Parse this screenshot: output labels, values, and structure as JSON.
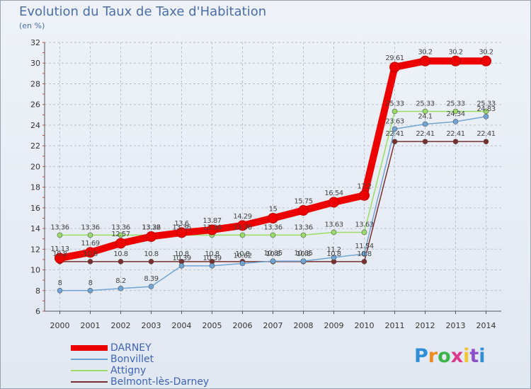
{
  "header": {
    "title": "Evolution du Taux de Taxe d'Habitation",
    "unit": "(en %)"
  },
  "logo": {
    "text": "Proxiti"
  },
  "chart_data": {
    "type": "line",
    "title": "Evolution du Taux de Taxe d'Habitation",
    "ylabel": "(en %)",
    "xlabel": "",
    "x": [
      2000,
      2001,
      2002,
      2003,
      2004,
      2005,
      2006,
      2007,
      2008,
      2009,
      2010,
      2011,
      2012,
      2013,
      2014
    ],
    "ylim": [
      6,
      32
    ],
    "yticks": [
      6,
      8,
      10,
      12,
      14,
      16,
      18,
      20,
      22,
      24,
      26,
      28,
      30,
      32
    ],
    "grid": true,
    "legend": "bottom-left",
    "series": [
      {
        "name": "DARNEY",
        "color": "#ee0000",
        "values": [
          11.13,
          11.69,
          12.57,
          13.22,
          13.6,
          13.87,
          14.29,
          15,
          15.75,
          16.54,
          17.2,
          29.61,
          30.2,
          30.2,
          30.2
        ],
        "labels": [
          "11.13",
          "11.69",
          "12.57",
          "13.22",
          "13.6",
          "13.87",
          "14.29",
          "15",
          "15.75",
          "16.54",
          "17.2",
          "29.61",
          "30.2",
          "30.2",
          "30.2"
        ]
      },
      {
        "name": "Bonvillet",
        "color": "#6fa5d6",
        "values": [
          8,
          8,
          8.2,
          8.39,
          10.39,
          10.39,
          10.62,
          10.85,
          10.85,
          11.2,
          11.54,
          23.63,
          24.1,
          24.34,
          24.83
        ],
        "labels": [
          "8",
          "8",
          "8.2",
          "8.39",
          "10.39",
          "10.39",
          "10.62",
          "10.85",
          "10.85",
          "11.2",
          "11.54",
          "23.63",
          "24.1",
          "24.34",
          "24.83"
        ]
      },
      {
        "name": "Attigny",
        "color": "#99dd66",
        "values": [
          13.36,
          13.36,
          13.36,
          13.36,
          13.36,
          13.36,
          13.36,
          13.36,
          13.36,
          13.63,
          13.63,
          25.33,
          25.33,
          25.33,
          25.33
        ],
        "labels": [
          "13.36",
          "13.36",
          "13.36",
          "13.36",
          "13.36",
          "13.36",
          "13.36",
          "13.36",
          "13.36",
          "13.63",
          "13.63",
          "25.33",
          "25.33",
          "25.33",
          "25.33"
        ]
      },
      {
        "name": "Belmont-lès-Darney",
        "color": "#7a2e2e",
        "values": [
          10.8,
          10.8,
          10.8,
          10.8,
          10.8,
          10.8,
          10.8,
          10.8,
          10.8,
          10.8,
          10.8,
          22.41,
          22.41,
          22.41,
          22.41
        ],
        "labels": [
          "10.8",
          "10.8",
          "10.8",
          "10.8",
          "10.8",
          "10.8",
          "10.8",
          "10.8",
          "10.8",
          "10.8",
          "10.8",
          "22.41",
          "22.41",
          "22.41",
          "22.41"
        ]
      }
    ]
  }
}
